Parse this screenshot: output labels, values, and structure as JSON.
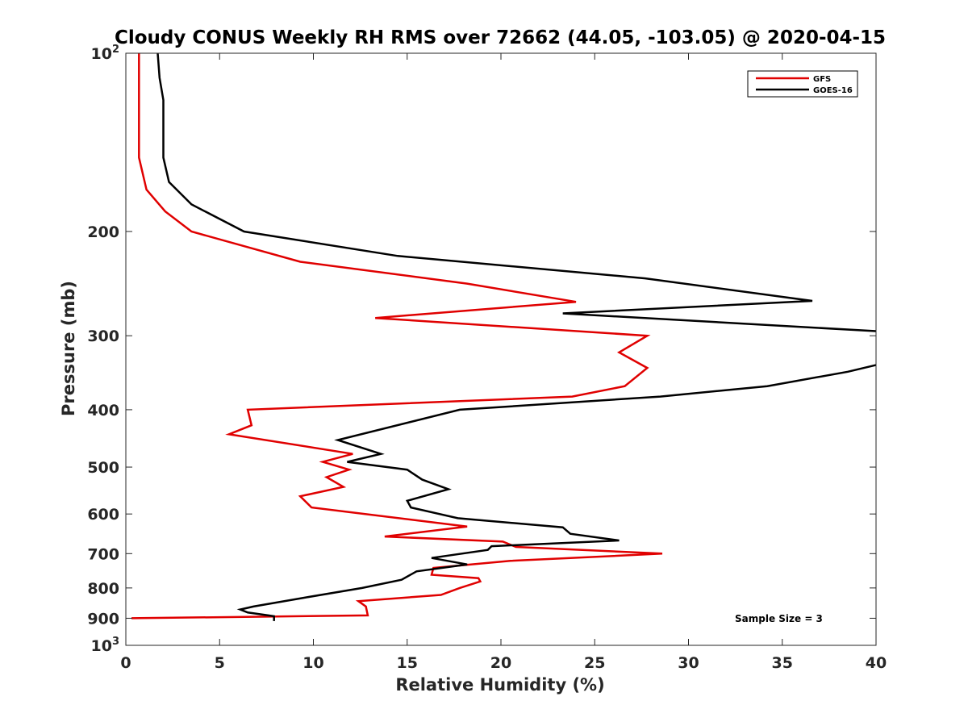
{
  "chart_data": {
    "type": "line",
    "title": "Cloudy CONUS Weekly RH RMS over 72662 (44.05, -103.05) @ 2020-04-15",
    "xlabel": "Relative Humidity (%)",
    "ylabel": "Pressure (mb)",
    "xlim": [
      0,
      40
    ],
    "ylim": [
      100,
      1000
    ],
    "y_scale": "log",
    "y_reversed": true,
    "x_ticks": [
      "0",
      "5",
      "10",
      "15",
      "20",
      "25",
      "30",
      "35",
      "40"
    ],
    "y_ticks": [
      {
        "value": 100,
        "base": "10",
        "exp": "2"
      },
      {
        "value": 200,
        "label": "200"
      },
      {
        "value": 300,
        "label": "300"
      },
      {
        "value": 400,
        "label": "400"
      },
      {
        "value": 500,
        "label": "500"
      },
      {
        "value": 600,
        "label": "600"
      },
      {
        "value": 700,
        "label": "700"
      },
      {
        "value": 800,
        "label": "800"
      },
      {
        "value": 900,
        "label": "900"
      },
      {
        "value": 1000,
        "base": "10",
        "exp": "3"
      }
    ],
    "grid": false,
    "legend_position": "top-right",
    "annotation": "Sample Size = 3",
    "series": [
      {
        "name": "GFS",
        "color": "#e00000",
        "points": [
          [
            0.7,
            100
          ],
          [
            0.7,
            150
          ],
          [
            1.1,
            170
          ],
          [
            2.1,
            185
          ],
          [
            3.5,
            200
          ],
          [
            9.3,
            225
          ],
          [
            18.2,
            245
          ],
          [
            24.0,
            263
          ],
          [
            13.3,
            280
          ],
          [
            27.8,
            300
          ],
          [
            26.3,
            320
          ],
          [
            27.8,
            340
          ],
          [
            26.6,
            365
          ],
          [
            23.8,
            380
          ],
          [
            6.5,
            400
          ],
          [
            6.7,
            425
          ],
          [
            5.5,
            440
          ],
          [
            12.1,
            475
          ],
          [
            10.5,
            490
          ],
          [
            11.9,
            505
          ],
          [
            10.7,
            520
          ],
          [
            11.6,
            540
          ],
          [
            9.3,
            560
          ],
          [
            9.9,
            585
          ],
          [
            18.2,
            630
          ],
          [
            13.8,
            655
          ],
          [
            20.1,
            668
          ],
          [
            20.8,
            682
          ],
          [
            28.6,
            700
          ],
          [
            20.5,
            720
          ],
          [
            16.4,
            740
          ],
          [
            16.3,
            760
          ],
          [
            18.8,
            770
          ],
          [
            18.9,
            780
          ],
          [
            17.8,
            800
          ],
          [
            16.8,
            822
          ],
          [
            12.4,
            842
          ],
          [
            12.8,
            860
          ],
          [
            12.9,
            890
          ],
          [
            0.3,
            900
          ]
        ]
      },
      {
        "name": "GOES-16",
        "color": "#000000",
        "points": [
          [
            1.7,
            100
          ],
          [
            1.8,
            110
          ],
          [
            2.0,
            120
          ],
          [
            2.0,
            150
          ],
          [
            2.3,
            165
          ],
          [
            3.5,
            180
          ],
          [
            6.3,
            200
          ],
          [
            14.5,
            220
          ],
          [
            27.7,
            240
          ],
          [
            36.6,
            262
          ],
          [
            23.3,
            275
          ],
          [
            40.2,
            295
          ],
          [
            40.1,
            310
          ],
          [
            40.2,
            335
          ],
          [
            38.5,
            345
          ],
          [
            34.2,
            365
          ],
          [
            28.5,
            380
          ],
          [
            17.8,
            400
          ],
          [
            11.3,
            450
          ],
          [
            13.6,
            475
          ],
          [
            11.8,
            490
          ],
          [
            15.0,
            505
          ],
          [
            15.8,
            525
          ],
          [
            17.2,
            545
          ],
          [
            15.0,
            570
          ],
          [
            15.2,
            585
          ],
          [
            17.7,
            610
          ],
          [
            23.3,
            632
          ],
          [
            23.7,
            648
          ],
          [
            26.3,
            665
          ],
          [
            19.5,
            680
          ],
          [
            19.3,
            690
          ],
          [
            16.3,
            712
          ],
          [
            18.2,
            730
          ],
          [
            15.5,
            750
          ],
          [
            14.7,
            775
          ],
          [
            12.6,
            800
          ],
          [
            9.6,
            830
          ],
          [
            6.8,
            860
          ],
          [
            6.1,
            870
          ],
          [
            6.5,
            880
          ],
          [
            7.6,
            890
          ],
          [
            7.9,
            893
          ],
          [
            7.9,
            910
          ]
        ]
      }
    ]
  }
}
